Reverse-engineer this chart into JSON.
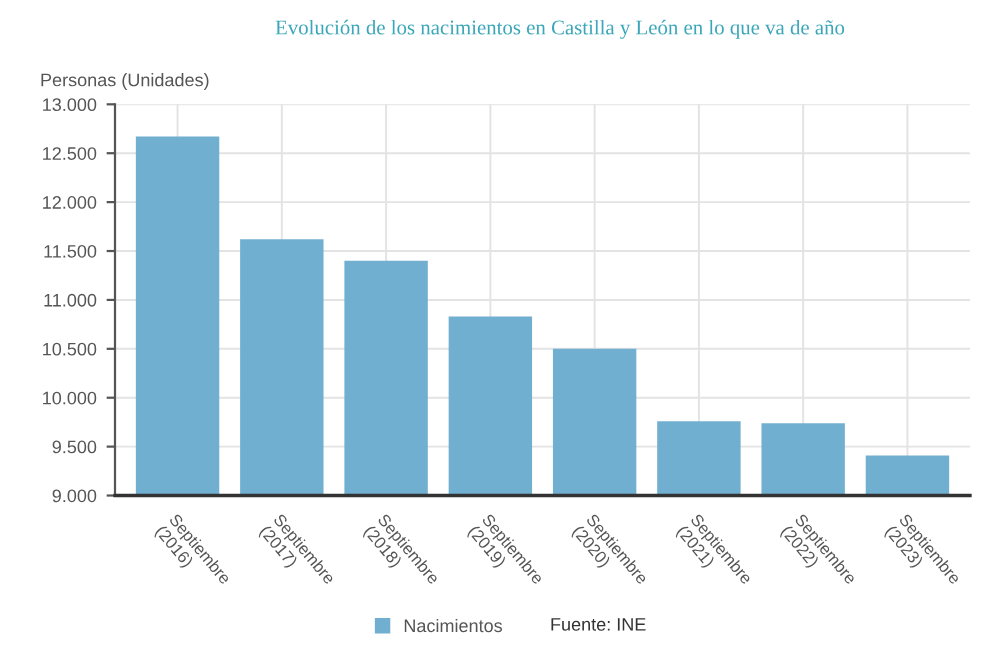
{
  "chart_data": {
    "type": "bar",
    "title": "Evolución de los nacimientos en Castilla y León en lo que va de año",
    "ylabel": "Personas (Unidades)",
    "categories": [
      "Septiembre\n(2016)",
      "Septiembre\n(2017)",
      "Septiembre\n(2018)",
      "Septiembre\n(2019)",
      "Septiembre\n(2020)",
      "Septiembre\n(2021)",
      "Septiembre\n(2022)",
      "Septiembre\n(2023)"
    ],
    "series": [
      {
        "name": "Nacimientos",
        "color": "#71afd0",
        "values": [
          12670,
          11620,
          11400,
          10830,
          10500,
          9760,
          9740,
          9410
        ]
      }
    ],
    "ylim": [
      9000,
      13000
    ],
    "yticks": [
      {
        "value": 9000,
        "label": "9.000"
      },
      {
        "value": 9500,
        "label": "9.500"
      },
      {
        "value": 10000,
        "label": "10.000"
      },
      {
        "value": 10500,
        "label": "10.500"
      },
      {
        "value": 11000,
        "label": "11.000"
      },
      {
        "value": 11500,
        "label": "11.500"
      },
      {
        "value": 12000,
        "label": "12.000"
      },
      {
        "value": 12500,
        "label": "12.500"
      },
      {
        "value": 13000,
        "label": "13.000"
      }
    ],
    "grid": true,
    "legend": "bottom",
    "annotations": [
      "Fuente: INE"
    ]
  }
}
